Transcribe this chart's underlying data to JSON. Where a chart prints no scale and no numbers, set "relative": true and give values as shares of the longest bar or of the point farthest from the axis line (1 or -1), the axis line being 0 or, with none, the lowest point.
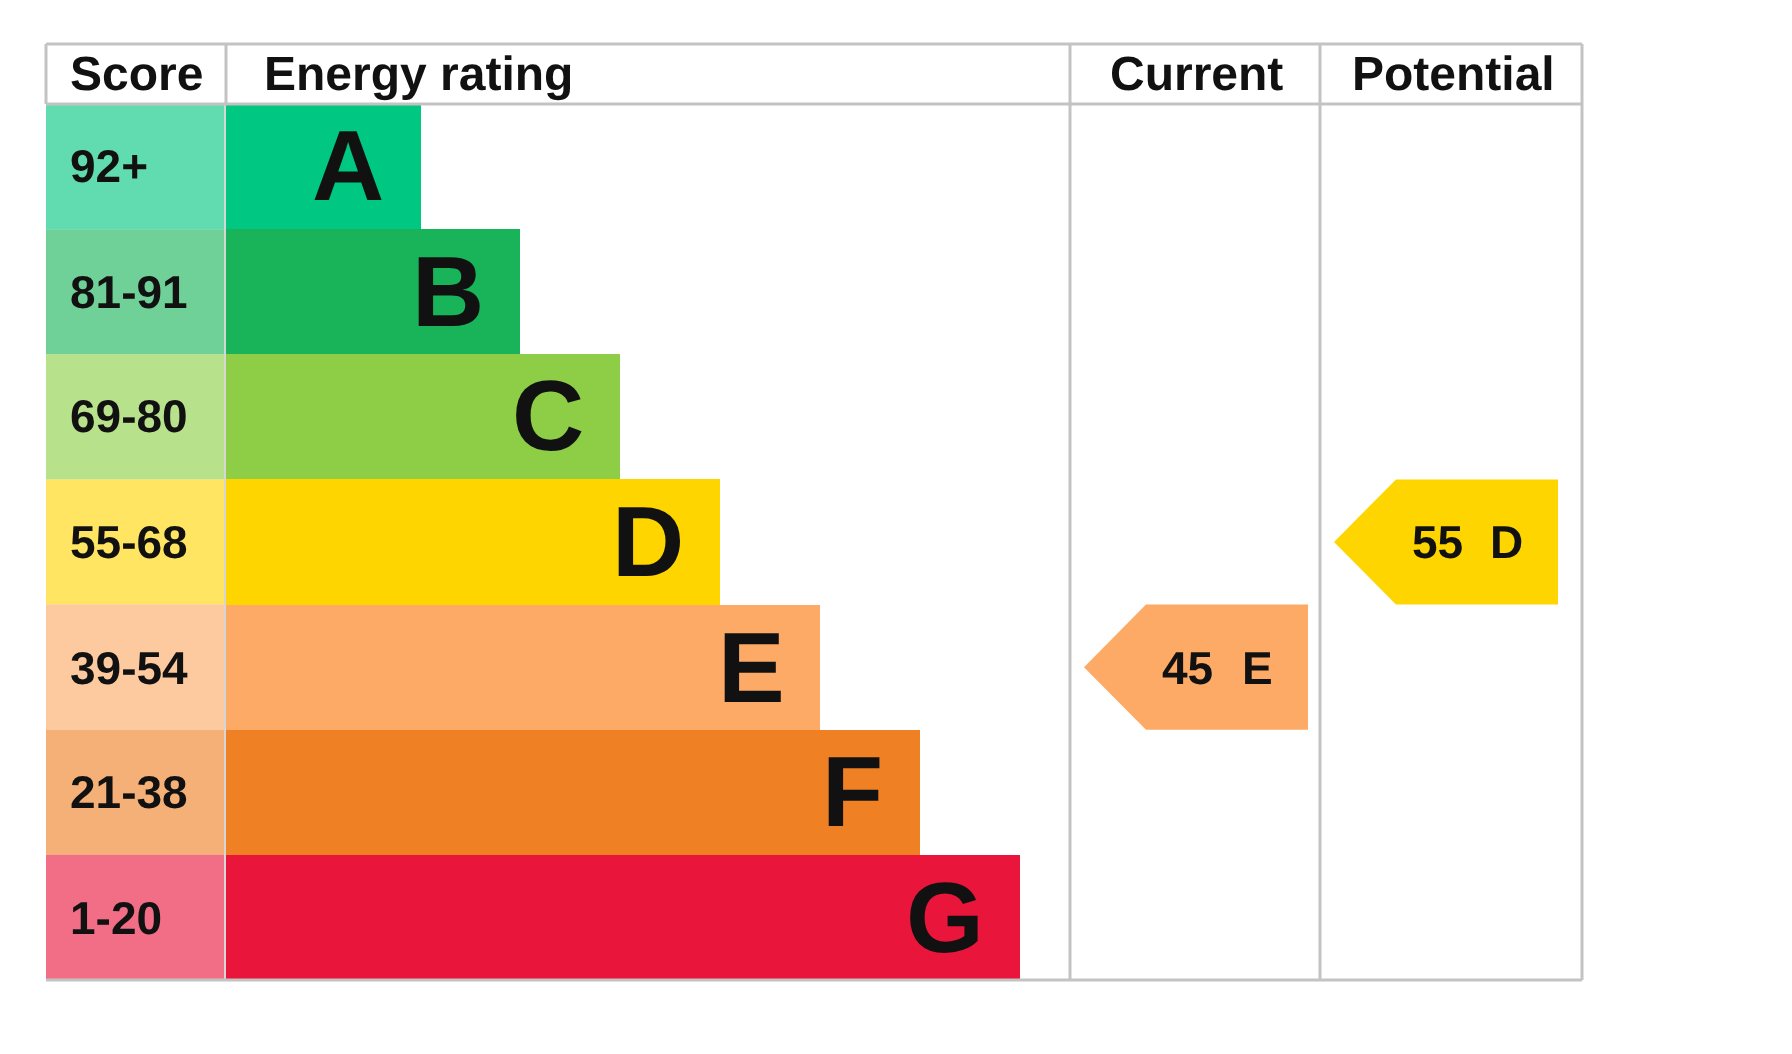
{
  "chart_data": [
    {
      "type": "bar",
      "orientation": "horizontal",
      "relative": true,
      "xlabel": "Energy rating",
      "ylabel": "Score",
      "categories": [
        "92+",
        "81-91",
        "69-80",
        "55-68",
        "39-54",
        "21-38",
        "1-20"
      ],
      "values": [
        0.245,
        0.37,
        0.496,
        0.622,
        0.748,
        0.874,
        1
      ],
      "colors": [
        "#00c781",
        "#19b459",
        "#8dce46",
        "#ffd500",
        "#fcaa65",
        "#ef8023",
        "#e9153b"
      ],
      "annotations": [
        {
          "text": "A",
          "x": 0.245,
          "y": "92+"
        },
        {
          "text": "B",
          "x": 0.37,
          "y": "81-91"
        },
        {
          "text": "C",
          "x": 0.496,
          "y": "69-80"
        },
        {
          "text": "D",
          "x": 0.622,
          "y": "55-68"
        },
        {
          "text": "E",
          "x": 0.748,
          "y": "39-54"
        },
        {
          "text": "F",
          "x": 0.874,
          "y": "21-38"
        },
        {
          "text": "G",
          "x": 1,
          "y": "1-20"
        }
      ]
    },
    {
      "type": "other",
      "data_labels": true,
      "categories": [
        null,
        null,
        null,
        "D",
        "E",
        null,
        null
      ],
      "annotations": [
        "Current",
        "Potential"
      ],
      "series": [
        {
          "values": [
            null,
            null,
            null,
            null,
            45,
            null,
            null
          ],
          "colors": [
            null,
            null,
            null,
            null,
            "#fcaa65",
            null,
            null
          ]
        },
        {
          "values": [
            null,
            null,
            null,
            55,
            null,
            null,
            null
          ],
          "colors": [
            null,
            null,
            null,
            "#ffd500",
            null,
            null,
            null
          ]
        }
      ]
    }
  ]
}
